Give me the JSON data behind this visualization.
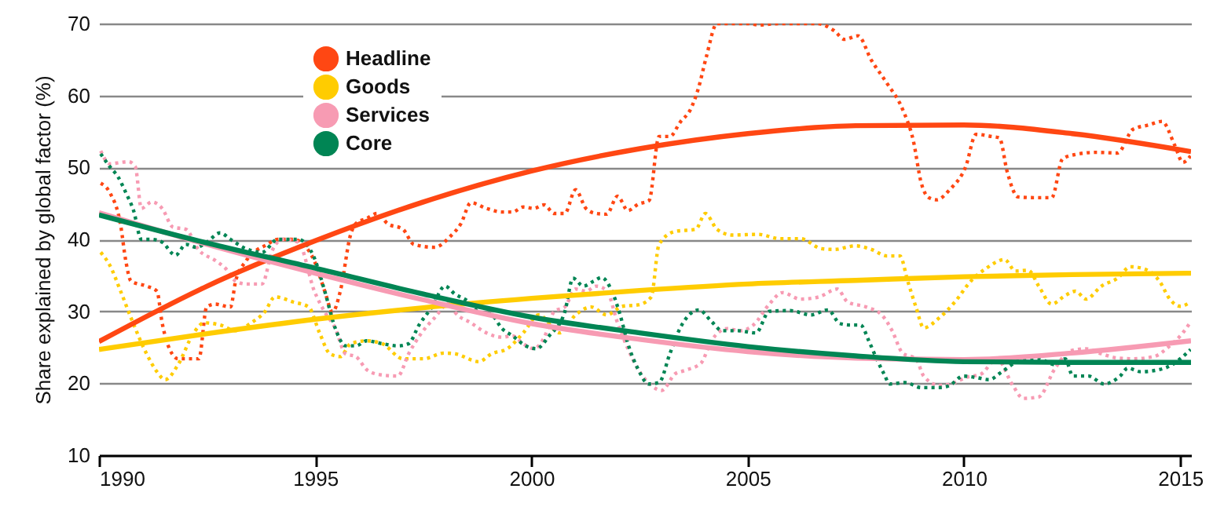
{
  "chart_data": {
    "type": "line",
    "ylabel": "Share explained by global factor (%)",
    "xlim": [
      1990,
      2015.25
    ],
    "xticks": [
      1990,
      1995,
      2000,
      2005,
      2010,
      2015
    ],
    "ylim": [
      10,
      70
    ],
    "yticks": [
      10,
      20,
      30,
      40,
      50,
      60,
      70
    ],
    "grid": "y",
    "legend": "top left",
    "series": [
      {
        "name": "Headline",
        "color": "#ff4713",
        "line_style": "dotted",
        "x": [
          1990.04,
          1990.25,
          1990.5,
          1990.62,
          1990.74,
          1991.1,
          1991.34,
          1991.46,
          1991.7,
          1991.83,
          1992.31,
          1992.49,
          1992.68,
          1993.04,
          1993.16,
          1993.4,
          1993.89,
          1994.13,
          1994.5,
          1994.73,
          1994.98,
          1995.22,
          1995.4,
          1995.58,
          1995.82,
          1995.94,
          1996.19,
          1996.43,
          1996.67,
          1997.03,
          1997.28,
          1997.76,
          1998.12,
          1998.37,
          1998.6,
          1998.96,
          1999.32,
          1999.56,
          1999.81,
          2000.05,
          2000.29,
          2000.53,
          2000.77,
          2001.02,
          2001.26,
          2001.5,
          2001.74,
          2001.99,
          2002.23,
          2002.47,
          2002.72,
          2002.95,
          2003.2,
          2003.44,
          2003.68,
          2003.86,
          2004.04,
          2004.29,
          2004.65,
          2005.01,
          2005.25,
          2005.74,
          2006.22,
          2006.59,
          2007.0,
          2007.24,
          2007.55,
          2007.86,
          2008.22,
          2008.58,
          2008.83,
          2009.01,
          2009.19,
          2009.37,
          2009.67,
          2010.04,
          2010.28,
          2010.64,
          2010.82,
          2011.0,
          2011.25,
          2011.61,
          2012.03,
          2012.28,
          2012.58,
          2013.06,
          2013.55,
          2013.91,
          2014.27,
          2014.58,
          2014.88,
          2015.06,
          2015.24
        ],
        "values": [
          47.8,
          46.5,
          42,
          37,
          34.2,
          33.5,
          32.8,
          28.4,
          24,
          23.4,
          23.4,
          30.6,
          31,
          30.6,
          34.2,
          37,
          39.3,
          40,
          40,
          39.3,
          37,
          32.8,
          29.9,
          32.8,
          40.7,
          42.2,
          42.9,
          43.6,
          42.2,
          41.4,
          39.3,
          38.9,
          40.4,
          42.2,
          45.1,
          44.3,
          43.8,
          43.8,
          44.5,
          44.3,
          44.8,
          43.6,
          43.6,
          46.9,
          44.3,
          43.6,
          43.5,
          46,
          44,
          44.9,
          45.4,
          54.3,
          54.3,
          56.3,
          58.1,
          61,
          65.3,
          70,
          70,
          70,
          69.8,
          70,
          70,
          70,
          69,
          67.8,
          68.3,
          64.9,
          61.7,
          58.1,
          53.7,
          47.9,
          45.8,
          45.5,
          46.9,
          50.1,
          54.6,
          54.3,
          54.1,
          49.4,
          45.9,
          45.8,
          45.8,
          51.2,
          51.8,
          52.1,
          52,
          55.3,
          55.9,
          56.4,
          53,
          50.7,
          51.6
        ]
      },
      {
        "name": "Goods",
        "color": "#ffcc00",
        "line_style": "dotted",
        "x": [
          1990.04,
          1990.25,
          1990.5,
          1990.74,
          1991.1,
          1991.34,
          1991.53,
          1991.83,
          1992.19,
          1992.43,
          1992.8,
          1993.16,
          1993.52,
          1993.83,
          1994.07,
          1994.49,
          1994.85,
          1995.1,
          1995.34,
          1995.58,
          1995.82,
          1996.19,
          1996.55,
          1997.03,
          1997.5,
          1997.98,
          1998.23,
          1998.78,
          1999.08,
          1999.44,
          1999.81,
          2000.17,
          2000.65,
          2001.02,
          2001.38,
          2001.74,
          2002.1,
          2002.47,
          2002.77,
          2002.95,
          2003.32,
          2003.8,
          2004.02,
          2004.29,
          2004.65,
          2005.25,
          2005.74,
          2006.22,
          2006.71,
          2007.0,
          2007.49,
          2007.86,
          2008.22,
          2008.52,
          2008.7,
          2008.89,
          2009.07,
          2009.43,
          2009.79,
          2010.16,
          2010.52,
          2010.94,
          2011.19,
          2011.49,
          2011.73,
          2012.03,
          2012.34,
          2012.58,
          2012.82,
          2013.18,
          2013.55,
          2013.85,
          2014.21,
          2014.52,
          2014.76,
          2015.0,
          2015.24
        ],
        "values": [
          38.2,
          36.4,
          32.8,
          29.1,
          24.1,
          21.6,
          20.5,
          22.6,
          27,
          28.4,
          28.1,
          27.3,
          28.4,
          29.9,
          32,
          31.3,
          30.6,
          27,
          24.1,
          23.7,
          25.5,
          25.9,
          25.5,
          23.4,
          23.4,
          24.2,
          24.1,
          23,
          24.1,
          24.8,
          27,
          29.5,
          27,
          29.5,
          30.6,
          29.5,
          30.7,
          30.9,
          32,
          39.3,
          41.1,
          41.4,
          43.6,
          41.4,
          40.6,
          40.7,
          40.1,
          40.1,
          38.7,
          38.6,
          39.1,
          38.6,
          37.7,
          37.7,
          34.2,
          30.6,
          27.7,
          29.1,
          31.3,
          34.2,
          36,
          37.2,
          35.6,
          35.7,
          33.5,
          31,
          32.2,
          32.8,
          31.7,
          33.5,
          34.6,
          36.2,
          35.8,
          34.2,
          31.7,
          30.7,
          31.3
        ]
      },
      {
        "name": "Services",
        "color": "#f79bb3",
        "line_style": "dotted",
        "x": [
          1990.04,
          1990.25,
          1990.5,
          1990.68,
          1990.84,
          1990.98,
          1991.22,
          1991.46,
          1991.71,
          1992.01,
          1992.31,
          1992.68,
          1992.92,
          1993.16,
          1993.4,
          1993.77,
          1994.01,
          1994.25,
          1994.61,
          1994.98,
          1995.22,
          1995.46,
          1995.7,
          1995.94,
          1996.19,
          1996.49,
          1996.91,
          1997.16,
          1997.46,
          1997.76,
          1998.12,
          1998.23,
          1998.6,
          1998.96,
          1999.32,
          1999.56,
          1999.81,
          2000.05,
          2000.29,
          2000.53,
          2000.77,
          2001.02,
          2001.26,
          2001.5,
          2001.74,
          2001.99,
          2002.23,
          2002.47,
          2002.77,
          2003.01,
          2003.32,
          2003.56,
          2003.92,
          2004.16,
          2004.53,
          2004.83,
          2005.13,
          2005.5,
          2005.8,
          2006.22,
          2006.65,
          2007.07,
          2007.31,
          2007.74,
          2008.1,
          2008.34,
          2008.58,
          2008.89,
          2009.07,
          2009.43,
          2009.79,
          2010.04,
          2010.4,
          2010.76,
          2011.13,
          2011.37,
          2011.73,
          2012.09,
          2012.46,
          2012.82,
          2013.18,
          2013.55,
          2013.91,
          2014.39,
          2014.76,
          2015.06,
          2015.25
        ],
        "values": [
          52.3,
          50.5,
          50.7,
          50.8,
          50.1,
          44.3,
          45.2,
          44.3,
          41.7,
          41.4,
          38.5,
          37.1,
          36,
          34.2,
          33.8,
          33.8,
          38.5,
          40,
          39.6,
          32.8,
          29.9,
          27.7,
          24.1,
          23.7,
          21.9,
          21.2,
          21,
          24.1,
          27,
          29.1,
          31.3,
          29.9,
          28.4,
          27,
          26.4,
          26.6,
          25.5,
          24.8,
          26.3,
          30,
          30.6,
          33.1,
          32.8,
          33.5,
          32.9,
          28.4,
          24.8,
          21.9,
          19.7,
          19,
          21.3,
          21.8,
          22.8,
          25.9,
          27.6,
          27.3,
          28.1,
          31,
          32.6,
          31.7,
          32,
          33.1,
          31.3,
          30.6,
          29.5,
          27.3,
          24.2,
          23.4,
          21,
          19.7,
          20.1,
          20.8,
          21.3,
          23.4,
          19.7,
          17.9,
          18.1,
          21.9,
          24.5,
          24.8,
          24.1,
          23.5,
          23.4,
          23.7,
          25.2,
          27,
          28.6
        ]
      },
      {
        "name": "Core",
        "color": "#008554",
        "line_style": "dotted",
        "x": [
          1990.04,
          1990.25,
          1990.44,
          1990.62,
          1990.8,
          1990.98,
          1991.22,
          1991.46,
          1991.77,
          1992.01,
          1992.25,
          1992.49,
          1992.8,
          1993.04,
          1993.4,
          1993.77,
          1994.13,
          1994.61,
          1994.98,
          1995.22,
          1995.46,
          1995.7,
          1995.94,
          1996.19,
          1996.55,
          1996.91,
          1997.16,
          1997.4,
          1997.7,
          1998.0,
          1998.23,
          1998.53,
          1998.78,
          1999.08,
          1999.32,
          1999.56,
          1999.87,
          2000.11,
          2000.41,
          2000.77,
          2000.96,
          2001.2,
          2001.44,
          2001.62,
          2001.86,
          2002.05,
          2002.23,
          2002.47,
          2002.71,
          2002.95,
          2003.2,
          2003.44,
          2003.68,
          2003.87,
          2004.16,
          2004.41,
          2004.77,
          2005.19,
          2005.5,
          2005.98,
          2006.46,
          2006.86,
          2007.13,
          2007.37,
          2007.61,
          2007.8,
          2007.98,
          2008.16,
          2008.28,
          2008.64,
          2009.01,
          2009.43,
          2009.67,
          2009.98,
          2010.28,
          2010.58,
          2010.88,
          2011.31,
          2011.73,
          2012.09,
          2012.34,
          2012.52,
          2012.88,
          2013.24,
          2013.61,
          2013.79,
          2014.09,
          2014.52,
          2014.82,
          2015.06,
          2015.24
        ],
        "values": [
          51.9,
          50.1,
          48.7,
          46.5,
          44,
          40,
          40,
          39.6,
          37.8,
          39.3,
          38.9,
          39.6,
          40.9,
          40,
          38.7,
          38.2,
          40,
          40,
          37.4,
          32.8,
          27.7,
          25.2,
          25.2,
          25.9,
          25.5,
          25.2,
          25.5,
          28.1,
          30.6,
          33.5,
          32.4,
          31.4,
          29.9,
          29.5,
          27.6,
          26.6,
          25.2,
          24.8,
          26.6,
          29.9,
          34.6,
          33.5,
          34.2,
          34.7,
          32.8,
          29.5,
          25.5,
          21.9,
          19.9,
          20.1,
          24.1,
          27.7,
          29.7,
          30.2,
          28.6,
          27.3,
          27.3,
          27,
          30,
          30.1,
          29.5,
          30.2,
          28.3,
          28.1,
          28.1,
          25.9,
          23.4,
          21.2,
          19.9,
          20.1,
          19.4,
          19.4,
          19.7,
          21,
          20.8,
          20.5,
          21.6,
          23.2,
          23.4,
          22.6,
          23.4,
          21,
          21,
          19.9,
          21,
          22.1,
          21.6,
          21.9,
          22.6,
          23.7,
          24.7
        ]
      },
      {
        "color": "#ff4713",
        "line_style": "solid",
        "x": [
          1990,
          1992.5,
          1995,
          1997.5,
          2000,
          2002.5,
          2005,
          2007.5,
          2010,
          2012.5,
          2015.25
        ],
        "values": [
          25.8,
          33.5,
          39.8,
          45.2,
          49.5,
          52.6,
          54.7,
          55.8,
          55.9,
          54.7,
          52.2
        ]
      },
      {
        "color": "#ffcc00",
        "line_style": "solid",
        "x": [
          1990,
          1992.5,
          1995,
          1997.5,
          2000,
          2002.5,
          2005,
          2007.5,
          2010,
          2012.5,
          2015.25
        ],
        "values": [
          24.7,
          26.9,
          28.9,
          30.5,
          31.8,
          32.9,
          33.8,
          34.3,
          34.8,
          35.1,
          35.3
        ]
      },
      {
        "color": "#f79bb3",
        "line_style": "solid",
        "x": [
          1990,
          1992.5,
          1995,
          1997.5,
          2000,
          2002.5,
          2005,
          2007.5,
          2010,
          2012.5,
          2015.25
        ],
        "values": [
          43.7,
          39.3,
          35.3,
          31.6,
          28.3,
          26.1,
          24.4,
          23.5,
          23.3,
          24.2,
          25.9
        ]
      },
      {
        "color": "#008554",
        "line_style": "solid",
        "x": [
          1990,
          1992.5,
          1995,
          1997.5,
          2000,
          2002.5,
          2005,
          2007.5,
          2010,
          2012.5,
          2015.25
        ],
        "values": [
          43.4,
          39.5,
          36.0,
          32.4,
          29.2,
          27.0,
          25.1,
          23.8,
          23.0,
          22.9,
          22.9
        ]
      }
    ]
  }
}
